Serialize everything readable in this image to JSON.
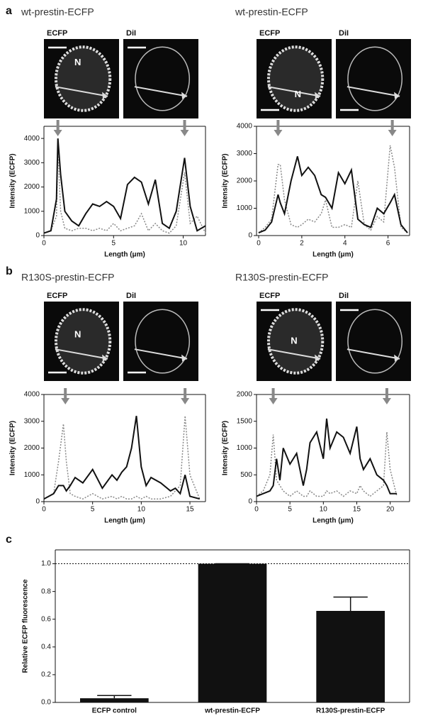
{
  "panels": [
    "a",
    "b",
    "c"
  ],
  "image_pairs": [
    {
      "left": "ECFP",
      "right": "DiI",
      "nucleus": "N"
    },
    {
      "left": "ECFP",
      "right": "DiI",
      "nucleus": "N"
    },
    {
      "left": "ECFP",
      "right": "DiI",
      "nucleus": "N"
    },
    {
      "left": "ECFP",
      "right": "DiI",
      "nucleus": "N"
    }
  ],
  "chart_data": [
    {
      "type": "line",
      "title": "wt-prestin-ECFP",
      "xlabel": "Length (μm)",
      "ylabel": "Intensity (ECFP)",
      "x": [
        0,
        0.5,
        0.9,
        1.0,
        1.2,
        1.5,
        2,
        2.5,
        3,
        3.5,
        4,
        4.5,
        5,
        5.5,
        6,
        6.5,
        7,
        7.5,
        8,
        8.5,
        9,
        9.5,
        10.1,
        10.5,
        11,
        11.6
      ],
      "series": [
        {
          "color": "#111111",
          "dash": "solid",
          "values": [
            100,
            200,
            1500,
            4000,
            2500,
            1000,
            600,
            400,
            900,
            1300,
            1200,
            1400,
            1200,
            700,
            2100,
            2400,
            2200,
            1300,
            2300,
            500,
            300,
            1000,
            3200,
            1200,
            200,
            400
          ]
        },
        {
          "color": "#888888",
          "dash": "dotted",
          "values": [
            100,
            200,
            800,
            3600,
            1000,
            300,
            200,
            300,
            300,
            200,
            300,
            200,
            500,
            200,
            300,
            400,
            900,
            200,
            500,
            200,
            100,
            400,
            2600,
            500,
            800,
            100
          ]
        }
      ],
      "arrows": [
        1.0,
        10.1
      ],
      "xlim": [
        0,
        11.6
      ],
      "ylim": [
        0,
        4500
      ],
      "xticks": [
        0,
        5,
        10
      ],
      "yticks": [
        0,
        1000,
        2000,
        3000,
        4000
      ]
    },
    {
      "type": "line",
      "title": "wt-prestin-ECFP",
      "xlabel": "Length (μm)",
      "ylabel": "Intensity (ECFP)",
      "x": [
        0,
        0.3,
        0.6,
        0.9,
        1.0,
        1.2,
        1.5,
        1.8,
        2.0,
        2.3,
        2.6,
        2.9,
        3.1,
        3.4,
        3.7,
        4.0,
        4.3,
        4.6,
        4.9,
        5.2,
        5.5,
        5.8,
        6.1,
        6.3,
        6.6,
        6.9
      ],
      "series": [
        {
          "color": "#111111",
          "dash": "solid",
          "values": [
            100,
            200,
            500,
            1500,
            1200,
            800,
            2000,
            2900,
            2200,
            2500,
            2200,
            1500,
            1400,
            1000,
            2300,
            1900,
            2400,
            600,
            400,
            300,
            1000,
            800,
            1200,
            1500,
            400,
            100
          ]
        },
        {
          "color": "#888888",
          "dash": "dotted",
          "values": [
            100,
            300,
            600,
            2600,
            2600,
            1300,
            400,
            300,
            400,
            600,
            500,
            800,
            1300,
            300,
            300,
            400,
            300,
            2000,
            400,
            200,
            700,
            500,
            3300,
            2500,
            300,
            100
          ]
        }
      ],
      "arrows": [
        0.9,
        6.2
      ],
      "xlim": [
        -0.1,
        7.0
      ],
      "ylim": [
        0,
        4000
      ],
      "xticks": [
        0,
        2,
        4,
        6
      ],
      "yticks": [
        0,
        1000,
        2000,
        3000,
        4000
      ]
    },
    {
      "type": "line",
      "title": "R130S-prestin-ECFP",
      "xlabel": "Length (μm)",
      "ylabel": "Intensity (ECFP)",
      "x": [
        0,
        1,
        1.5,
        2,
        2.3,
        2.7,
        3.2,
        4,
        5,
        6,
        7,
        7.5,
        8,
        8.5,
        9,
        9.5,
        10,
        10.5,
        11,
        12,
        13,
        13.5,
        14,
        14.5,
        15,
        16
      ],
      "series": [
        {
          "color": "#111111",
          "dash": "solid",
          "values": [
            100,
            300,
            600,
            600,
            400,
            600,
            900,
            700,
            1200,
            500,
            1000,
            800,
            1100,
            1300,
            2000,
            3200,
            1300,
            600,
            900,
            700,
            400,
            500,
            300,
            1000,
            200,
            100
          ]
        },
        {
          "color": "#888888",
          "dash": "dotted",
          "values": [
            100,
            300,
            1500,
            2900,
            1500,
            300,
            200,
            100,
            300,
            100,
            200,
            100,
            200,
            100,
            100,
            200,
            100,
            200,
            100,
            100,
            200,
            400,
            600,
            3200,
            1000,
            100
          ]
        }
      ],
      "arrows": [
        2.2,
        14.5
      ],
      "xlim": [
        0,
        16.6
      ],
      "ylim": [
        0,
        4000
      ],
      "xticks": [
        0,
        5,
        10,
        15
      ],
      "yticks": [
        0,
        1000,
        2000,
        3000,
        4000
      ]
    },
    {
      "type": "line",
      "title": "R130S-prestin-ECFP",
      "xlabel": "Length (μm)",
      "ylabel": "Intensity (ECFP)",
      "x": [
        0,
        1,
        2,
        2.5,
        3,
        3.5,
        4,
        5,
        6,
        7,
        7.5,
        8,
        9,
        10,
        10.5,
        11,
        12,
        13,
        14,
        15,
        15.5,
        16,
        17,
        18,
        19,
        19.5,
        20,
        21
      ],
      "series": [
        {
          "color": "#111111",
          "dash": "solid",
          "values": [
            100,
            150,
            200,
            300,
            800,
            400,
            1000,
            700,
            900,
            300,
            600,
            1100,
            1300,
            800,
            1550,
            1000,
            1300,
            1200,
            900,
            1400,
            800,
            600,
            800,
            500,
            400,
            300,
            150,
            150
          ]
        },
        {
          "color": "#888888",
          "dash": "dotted",
          "values": [
            100,
            200,
            500,
            1250,
            400,
            300,
            200,
            100,
            200,
            100,
            100,
            200,
            100,
            100,
            200,
            150,
            200,
            100,
            200,
            150,
            300,
            200,
            100,
            200,
            300,
            1300,
            600,
            100
          ]
        }
      ],
      "arrows": [
        2.5,
        19.5
      ],
      "xlim": [
        0,
        22.9
      ],
      "ylim": [
        0,
        2000
      ],
      "xticks": [
        0,
        5,
        10,
        15,
        20
      ],
      "yticks": [
        0,
        500,
        1000,
        1500,
        2000
      ]
    },
    {
      "type": "bar",
      "ylabel": "Relative ECFP fluorescence",
      "categories": [
        "ECFP control",
        "wt-prestin-ECFP",
        "R130S-prestin-ECFP"
      ],
      "values": [
        0.03,
        1.0,
        0.66
      ],
      "errors": [
        0.02,
        0,
        0.1
      ],
      "color": "#111111",
      "reference_line": 1.0,
      "ylim": [
        0,
        1.1
      ],
      "yticks": [
        {
          "value": 0,
          "label": "0.0"
        },
        0.2,
        0.4,
        0.6,
        0.8,
        {
          "value": 1,
          "label": "1.0"
        }
      ]
    }
  ]
}
